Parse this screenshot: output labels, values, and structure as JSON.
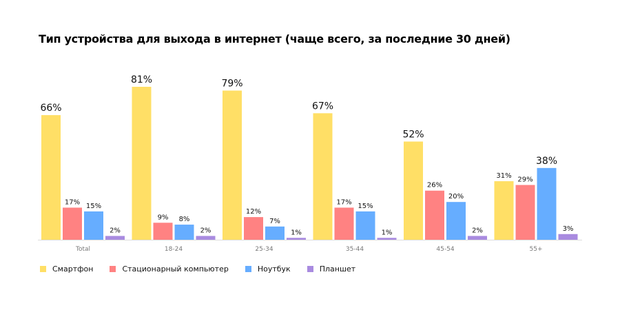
{
  "chart_data": {
    "type": "bar",
    "title": "Тип устройства для выхода в интернет (чаще всего, за последние 30 дней)",
    "categories": [
      "Total",
      "18-24",
      "25-34",
      "35-44",
      "45-54",
      "55+"
    ],
    "series": [
      {
        "name": "Смартфон",
        "color": "#FFDF66",
        "values": [
          66,
          81,
          79,
          67,
          52,
          31
        ]
      },
      {
        "name": "Стационарный компьютер",
        "color": "#FF8282",
        "values": [
          17,
          9,
          12,
          17,
          26,
          29
        ]
      },
      {
        "name": "Ноутбук",
        "color": "#66ADFF",
        "values": [
          15,
          8,
          7,
          15,
          20,
          38
        ]
      },
      {
        "name": "Планшет",
        "color": "#A98BE0",
        "values": [
          2,
          2,
          1,
          1,
          2,
          3
        ]
      }
    ],
    "value_suffix": "%",
    "ylim": [
      0,
      81
    ],
    "grid": false,
    "legend_position": "bottom-left"
  }
}
